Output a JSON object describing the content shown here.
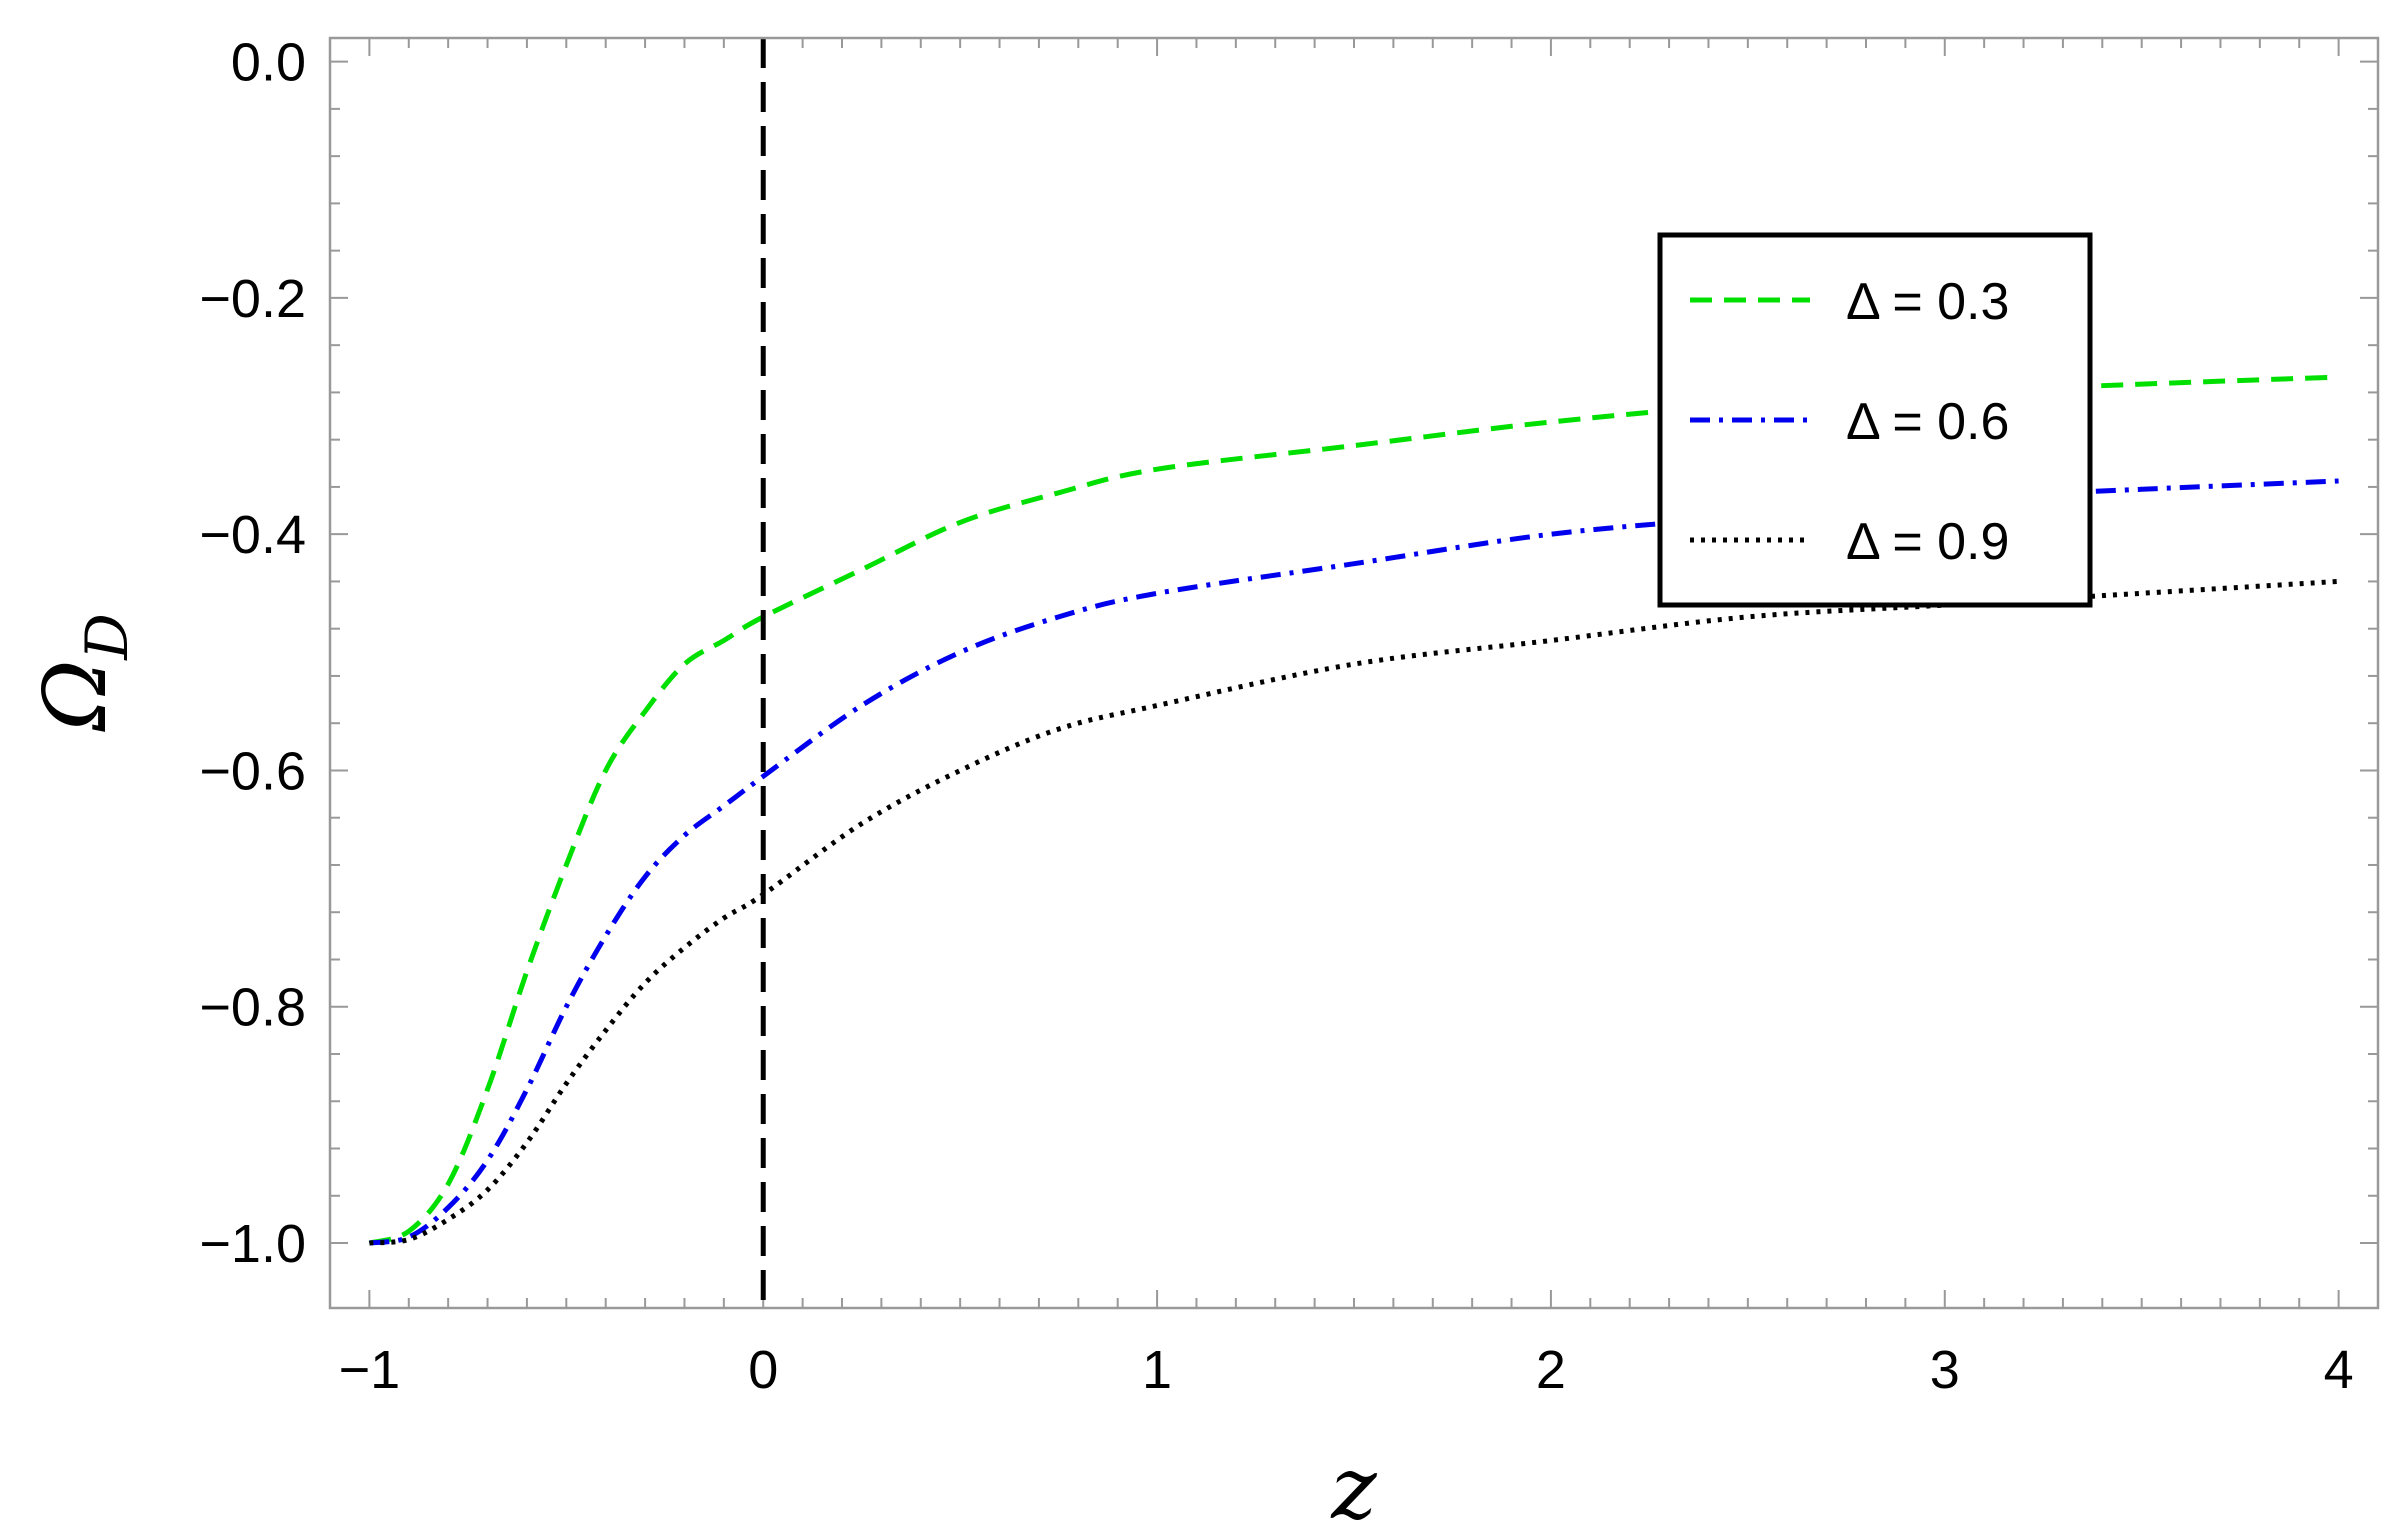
{
  "chart_data": {
    "type": "line",
    "xlabel": "z",
    "ylabel": "Ω",
    "ylabel_sub": "D",
    "xlim": [
      -1.1,
      4.1
    ],
    "ylim": [
      -1.055,
      0.02
    ],
    "xticks": [
      -1,
      0,
      1,
      2,
      3,
      4
    ],
    "xtick_labels": [
      "−1",
      "0",
      "1",
      "2",
      "3",
      "4"
    ],
    "yticks": [
      0.0,
      -0.2,
      -0.4,
      -0.6,
      -0.8,
      -1.0
    ],
    "ytick_labels": [
      "0.0",
      "−0.2",
      "−0.4",
      "−0.6",
      "−0.8",
      "−1.0"
    ],
    "vline_x": 0,
    "legend_position": "upper-right",
    "series": [
      {
        "name": "Δ = 0.3",
        "color": "#00e000",
        "dash": "dashed",
        "x": [
          -1,
          -0.9,
          -0.8,
          -0.7,
          -0.6,
          -0.5,
          -0.4,
          -0.3,
          -0.2,
          -0.1,
          0,
          0.25,
          0.5,
          0.75,
          1.0,
          1.5,
          2.0,
          2.5,
          3.0,
          3.5,
          4.0
        ],
        "y": [
          -1.0,
          -0.99,
          -0.95,
          -0.87,
          -0.77,
          -0.68,
          -0.6,
          -0.55,
          -0.51,
          -0.49,
          -0.47,
          -0.43,
          -0.39,
          -0.365,
          -0.345,
          -0.325,
          -0.305,
          -0.29,
          -0.28,
          -0.273,
          -0.267
        ]
      },
      {
        "name": "Δ = 0.6",
        "color": "#0000ee",
        "dash": "dashdot",
        "x": [
          -1,
          -0.9,
          -0.8,
          -0.7,
          -0.6,
          -0.5,
          -0.4,
          -0.3,
          -0.2,
          -0.1,
          0,
          0.25,
          0.5,
          0.75,
          1.0,
          1.5,
          2.0,
          2.5,
          3.0,
          3.5,
          4.0
        ],
        "y": [
          -1.0,
          -0.995,
          -0.97,
          -0.93,
          -0.87,
          -0.8,
          -0.74,
          -0.69,
          -0.655,
          -0.63,
          -0.605,
          -0.545,
          -0.5,
          -0.47,
          -0.45,
          -0.425,
          -0.4,
          -0.385,
          -0.37,
          -0.362,
          -0.355
        ]
      },
      {
        "name": "Δ = 0.9",
        "color": "#000000",
        "dash": "dotted",
        "x": [
          -1,
          -0.9,
          -0.8,
          -0.7,
          -0.6,
          -0.5,
          -0.4,
          -0.3,
          -0.2,
          -0.1,
          0,
          0.25,
          0.5,
          0.75,
          1.0,
          1.5,
          2.0,
          2.5,
          3.0,
          3.5,
          4.0
        ],
        "y": [
          -1.0,
          -0.997,
          -0.98,
          -0.955,
          -0.915,
          -0.865,
          -0.82,
          -0.78,
          -0.75,
          -0.725,
          -0.705,
          -0.645,
          -0.6,
          -0.565,
          -0.545,
          -0.51,
          -0.49,
          -0.47,
          -0.46,
          -0.45,
          -0.44
        ]
      }
    ]
  }
}
